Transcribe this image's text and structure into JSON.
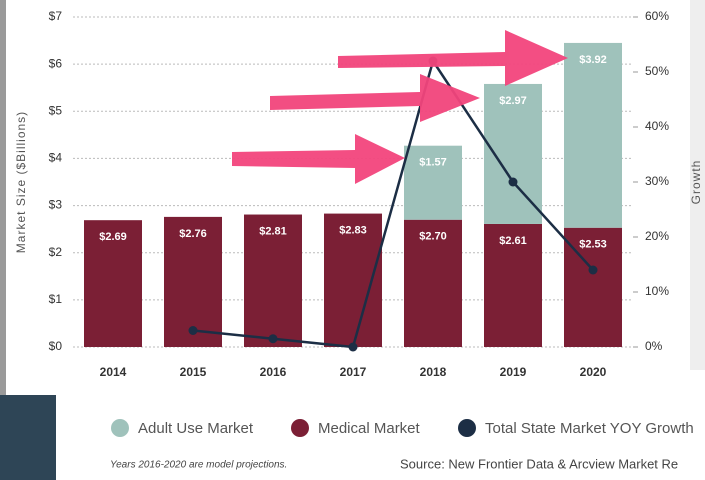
{
  "chart_data": {
    "type": "stacked-bar-line",
    "categories": [
      "2014",
      "2015",
      "2016",
      "2017",
      "2018",
      "2019",
      "2020"
    ],
    "series": [
      {
        "name": "Medical Market",
        "color": "#7b1f35",
        "values": [
          2.69,
          2.76,
          2.81,
          2.83,
          2.7,
          2.61,
          2.53
        ],
        "value_labels": [
          "$2.69",
          "$2.76",
          "$2.81",
          "$2.83",
          "$2.70",
          "$2.61",
          "$2.53"
        ]
      },
      {
        "name": "Adult Use Market",
        "color": "#9fc2bb",
        "values": [
          null,
          null,
          null,
          null,
          1.57,
          2.97,
          3.92
        ],
        "value_labels": [
          null,
          null,
          null,
          null,
          "$1.57",
          "$2.97",
          "$3.92"
        ]
      },
      {
        "name": "Total State Market YOY Growth",
        "color": "#1c2e45",
        "axis": "y2",
        "values": [
          null,
          3,
          1.5,
          0,
          52,
          30,
          14
        ]
      }
    ],
    "ylabel": "Market Size ($Billions)",
    "y2label": "Growth",
    "ylim": [
      0,
      7
    ],
    "yticks": [
      {
        "value": 0,
        "label": "$0"
      },
      {
        "value": 1,
        "label": "$1"
      },
      {
        "value": 2,
        "label": "$2"
      },
      {
        "value": 3,
        "label": "$3"
      },
      {
        "value": 4,
        "label": "$4"
      },
      {
        "value": 5,
        "label": "$5"
      },
      {
        "value": 6,
        "label": "$6"
      },
      {
        "value": 7,
        "label": "$7"
      }
    ],
    "y2lim": [
      0,
      60
    ],
    "y2ticks": [
      {
        "value": 0,
        "label": "0%"
      },
      {
        "value": 10,
        "label": "10%"
      },
      {
        "value": 20,
        "label": "20%"
      },
      {
        "value": 30,
        "label": "30%"
      },
      {
        "value": 40,
        "label": "40%"
      },
      {
        "value": 50,
        "label": "50%"
      },
      {
        "value": 60,
        "label": "60%"
      }
    ],
    "grid": true,
    "footnote": "Years 2016-2020 are model projections.",
    "source": "Source: New Frontier Data & Arcview Market Re"
  }
}
